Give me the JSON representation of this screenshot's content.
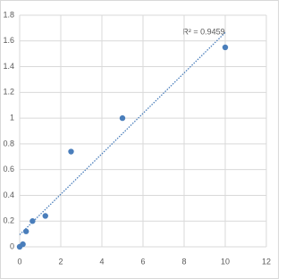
{
  "chart_data": {
    "type": "scatter",
    "annotation": "R² = 0.9459",
    "x": [
      0,
      0.156,
      0.3125,
      0.625,
      1.25,
      2.5,
      5,
      10
    ],
    "values": [
      0,
      0.02,
      0.12,
      0.2,
      0.24,
      0.74,
      1.0,
      1.55
    ],
    "color": "#4a7ebb",
    "trendline": {
      "kind": "linear",
      "color": "#4a7ebb"
    },
    "xlim": [
      0,
      12
    ],
    "xticks": [
      0,
      2,
      4,
      6,
      8,
      10,
      12
    ],
    "ylim": [
      0,
      1.8
    ],
    "yticks": [
      0,
      0.2,
      0.4,
      0.6,
      0.8,
      1,
      1.2,
      1.4,
      1.6,
      1.8
    ],
    "grid": true
  }
}
